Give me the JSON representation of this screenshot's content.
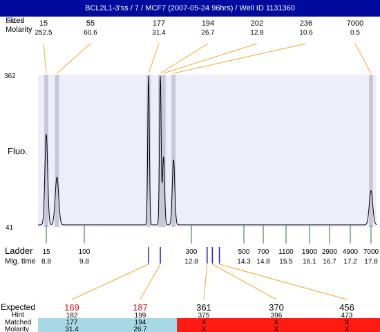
{
  "title": "BCL2L1-3'ss / 7 / MCF7 (2007-05-24 96hrs) / Well ID 1131360",
  "labels": {
    "sizes": "Sizes",
    "fitted": "Fitted",
    "molarity": "Molarity",
    "fluo": "Fluo.",
    "ladder": "Ladder",
    "mig_time": "Mig. time",
    "expected": "Expected",
    "hint": "Hint",
    "matched": "Matched",
    "molarity_row": "Molarity"
  },
  "colors": {
    "title_bg": "#000b9e",
    "plot_bg": "#eeeefb",
    "band": "#c8c8d8",
    "leader": "#f5a623",
    "ladder_tick": "#1f7a1f",
    "marker": "#1c1ccc",
    "expected_red": "#e0141e",
    "matched_bg": "#a8d8e6",
    "unmatched_bg": "#ff1a12"
  },
  "chart_data": {
    "type": "line",
    "y_tick_labels": [
      "362",
      "41"
    ],
    "ylim": [
      41,
      362
    ],
    "ylabel": "Fluo.",
    "xlabel": "Ladder",
    "peaks": [
      {
        "size": "15",
        "molarity": "252.5",
        "mig_time": 8.8,
        "height": 0.61
      },
      {
        "size": "55",
        "molarity": "60.6",
        "mig_time": 9.08,
        "height": 0.32
      },
      {
        "size": "177",
        "molarity": "31.4",
        "mig_time": 11.6,
        "height": 1.0
      },
      {
        "size": "194",
        "molarity": "26.7",
        "mig_time": 11.93,
        "height": 1.0
      },
      {
        "size": "202",
        "molarity": "12.8",
        "mig_time": 12.02,
        "height": 0.46
      },
      {
        "size": "236",
        "molarity": "10.6",
        "mig_time": 12.3,
        "height": 0.44
      },
      {
        "size": "7000",
        "molarity": "0.5",
        "mig_time": 17.8,
        "height": 0.23
      }
    ],
    "ladder": [
      {
        "size": "15",
        "mig_time": "8.8",
        "t": 8.8
      },
      {
        "size": "100",
        "mig_time": "9.8",
        "t": 9.8
      },
      {
        "size": "300",
        "mig_time": "12.8",
        "t": 12.8
      },
      {
        "size": "500",
        "mig_time": "14.3",
        "t": 14.3
      },
      {
        "size": "700",
        "mig_time": "14.8",
        "t": 14.8
      },
      {
        "size": "1100",
        "mig_time": "15.5",
        "t": 15.5
      },
      {
        "size": "1900",
        "mig_time": "16.1",
        "t": 16.1
      },
      {
        "size": "2900",
        "mig_time": "16.7",
        "t": 16.7
      },
      {
        "size": "4900",
        "mig_time": "17.2",
        "t": 17.2
      },
      {
        "size": "7000",
        "mig_time": "17.8",
        "t": 17.8
      }
    ],
    "markers": [
      {
        "t": 11.6,
        "expected_index": 0
      },
      {
        "t": 11.93,
        "expected_index": 1
      },
      {
        "t": 13.25,
        "expected_index": 2
      },
      {
        "t": 13.4,
        "expected_index": 3
      },
      {
        "t": 13.6,
        "expected_index": 4
      }
    ],
    "expected": [
      {
        "value": "169",
        "hint": "182",
        "matched": "177",
        "molarity": "31.4",
        "is_matched": true
      },
      {
        "value": "187",
        "hint": "199",
        "matched": "194",
        "molarity": "26.7",
        "is_matched": true
      },
      {
        "value": "361",
        "hint": "375",
        "matched": "X",
        "molarity": "X",
        "is_matched": false
      },
      {
        "value": "370",
        "hint": "396",
        "matched": "X",
        "molarity": "X",
        "is_matched": false
      },
      {
        "value": "456",
        "hint": "473",
        "matched": "X",
        "molarity": "X",
        "is_matched": false
      }
    ]
  }
}
